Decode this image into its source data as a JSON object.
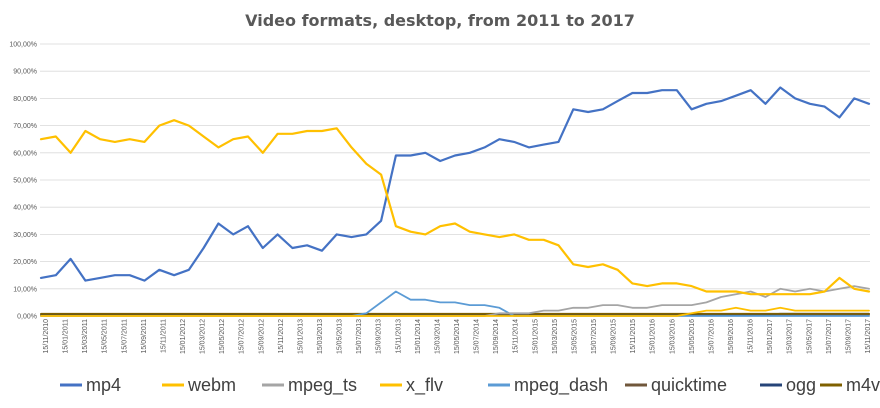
{
  "chart_data": {
    "type": "line",
    "title": "Video formats, desktop, from 2011 to 2017",
    "xlabel": "",
    "ylabel": "",
    "ylim": [
      0,
      100
    ],
    "y_ticks": [
      "0,00%",
      "10,00%",
      "20,00%",
      "30,00%",
      "40,00%",
      "50,00%",
      "60,00%",
      "70,00%",
      "80,00%",
      "90,00%",
      "100,00%"
    ],
    "x_ticks": [
      "15/11/2010",
      "15/01/2011",
      "15/03/2011",
      "15/05/2011",
      "15/07/2011",
      "15/09/2011",
      "15/11/2011",
      "15/01/2012",
      "15/03/2012",
      "15/05/2012",
      "15/07/2012",
      "15/09/2012",
      "15/11/2012",
      "15/01/2013",
      "15/03/2013",
      "15/05/2013",
      "15/07/2013",
      "15/09/2013",
      "15/11/2013",
      "15/01/2014",
      "15/03/2014",
      "15/05/2014",
      "15/07/2014",
      "15/09/2014",
      "15/11/2014",
      "15/01/2015",
      "15/03/2015",
      "15/05/2015",
      "15/07/2015",
      "15/09/2015",
      "15/11/2015",
      "15/01/2016",
      "15/03/2016",
      "15/05/2016",
      "15/07/2016",
      "15/09/2016",
      "15/11/2016",
      "15/01/2017",
      "15/03/2017",
      "15/05/2017",
      "15/07/2017",
      "15/09/2017",
      "15/11/2017"
    ],
    "grid": true,
    "legend_position": "bottom",
    "series": [
      {
        "name": "mp4",
        "color": "#4472c4",
        "values": [
          14,
          15,
          21,
          13,
          14,
          15,
          15,
          13,
          17,
          15,
          17,
          25,
          34,
          30,
          33,
          25,
          30,
          25,
          26,
          24,
          30,
          29,
          30,
          35,
          59,
          59,
          60,
          57,
          59,
          60,
          62,
          65,
          64,
          62,
          63,
          64,
          76,
          75,
          76,
          79,
          82,
          82,
          83,
          83,
          76,
          78,
          79,
          81,
          83,
          78,
          84,
          80,
          78,
          77,
          73,
          80,
          78
        ]
      },
      {
        "name": "webm",
        "color": "#ffc000",
        "values": [
          0,
          0,
          0,
          0,
          0,
          0,
          0,
          0,
          0,
          0,
          0,
          0,
          0,
          0,
          0,
          0,
          0,
          0,
          0,
          0,
          0,
          0,
          0,
          0,
          0,
          0,
          0,
          0,
          0,
          0,
          0,
          0,
          0,
          0,
          0,
          0,
          0,
          0,
          0,
          0,
          0,
          0,
          0,
          0,
          1,
          2,
          2,
          3,
          2,
          2,
          3,
          2,
          2,
          2,
          2,
          2,
          2
        ]
      },
      {
        "name": "mpeg_ts",
        "color": "#a5a5a5",
        "values": [
          0,
          0,
          0,
          0,
          0,
          0,
          0,
          0,
          0,
          0,
          0,
          0,
          0,
          0,
          0,
          0,
          0,
          0,
          0,
          0,
          0,
          0,
          0,
          0,
          0,
          0,
          0,
          0,
          0,
          0,
          0,
          1,
          1,
          1,
          2,
          2,
          3,
          3,
          4,
          4,
          3,
          3,
          4,
          4,
          4,
          5,
          7,
          8,
          9,
          7,
          10,
          9,
          10,
          9,
          10,
          11,
          10
        ]
      },
      {
        "name": "x_flv",
        "color": "#ffc000",
        "values": [
          65,
          66,
          60,
          68,
          65,
          64,
          65,
          64,
          70,
          72,
          70,
          66,
          62,
          65,
          66,
          60,
          67,
          67,
          68,
          68,
          69,
          62,
          56,
          52,
          33,
          31,
          30,
          33,
          34,
          31,
          30,
          29,
          30,
          28,
          28,
          26,
          19,
          18,
          19,
          17,
          12,
          11,
          12,
          12,
          11,
          9,
          9,
          9,
          8,
          8,
          8,
          8,
          8,
          9,
          14,
          10,
          9
        ]
      },
      {
        "name": "mpeg_dash",
        "color": "#5b9bd5",
        "values": [
          0,
          0,
          0,
          0,
          0,
          0,
          0,
          0,
          0,
          0,
          0,
          0,
          0,
          0,
          0,
          0,
          0,
          0,
          0,
          0,
          0,
          0,
          1,
          5,
          9,
          6,
          6,
          5,
          5,
          4,
          4,
          3,
          0,
          0,
          0,
          0,
          0,
          0,
          0,
          0,
          0,
          0,
          0,
          0,
          0,
          0,
          0,
          0,
          0,
          0,
          0,
          0,
          0,
          0,
          0,
          0,
          0
        ]
      },
      {
        "name": "quicktime",
        "color": "#70573b",
        "values": [
          0.5,
          0.5,
          0.5,
          0.5,
          0.5,
          0.5,
          0.5,
          0.5,
          0.5,
          0.5,
          0.5,
          0.5,
          0.5,
          0.5,
          0.5,
          0.5,
          0.5,
          0.5,
          0.5,
          0.5,
          0.5,
          0.5,
          0.5,
          0.5,
          0.5,
          0.5,
          0.5,
          0.5,
          0.5,
          0.5,
          0.5,
          0.5,
          0.5,
          0.5,
          0.5,
          0.5,
          0.5,
          0.5,
          0.5,
          0.5,
          0.5,
          0.5,
          0.5,
          0.5,
          0.5,
          0.5,
          0.5,
          0.5,
          0.5,
          0.5,
          0.5,
          0.5,
          0.5,
          0.5,
          0.5,
          0.5,
          0.5
        ]
      },
      {
        "name": "ogg",
        "color": "#264478",
        "values": [
          0.3,
          0.3,
          0.3,
          0.3,
          0.3,
          0.3,
          0.3,
          0.3,
          0.3,
          0.3,
          0.3,
          0.3,
          0.3,
          0.3,
          0.3,
          0.3,
          0.3,
          0.3,
          0.3,
          0.3,
          0.3,
          0.3,
          0.3,
          0.3,
          0.3,
          0.3,
          0.3,
          0.3,
          0.3,
          0.3,
          0.3,
          0.3,
          0.3,
          0.3,
          0.3,
          0.3,
          0.3,
          0.3,
          0.3,
          0.3,
          0.3,
          0.3,
          0.3,
          0.3,
          0.3,
          0.3,
          0.3,
          0.3,
          0.3,
          0.5,
          0.8,
          0.8,
          0.8,
          0.8,
          0.8,
          0.8,
          0.8
        ]
      },
      {
        "name": "m4v",
        "color": "#7f6000",
        "values": [
          0.8,
          0.8,
          0.8,
          0.8,
          0.8,
          0.8,
          0.8,
          0.8,
          0.8,
          0.8,
          0.8,
          0.8,
          0.8,
          0.8,
          0.8,
          0.8,
          0.8,
          0.8,
          0.8,
          0.8,
          0.8,
          0.8,
          0.8,
          0.8,
          0.8,
          0.8,
          0.8,
          0.8,
          0.8,
          0.8,
          0.8,
          0.8,
          0.8,
          0.8,
          0.8,
          0.8,
          0.8,
          0.8,
          0.8,
          0.8,
          0.8,
          0.8,
          0.8,
          0.8,
          0.8,
          0.8,
          0.8,
          0.8,
          0.8,
          0.8,
          0.8,
          0.8,
          0.8,
          0.8,
          0.8,
          0.8,
          0.8
        ]
      }
    ]
  }
}
